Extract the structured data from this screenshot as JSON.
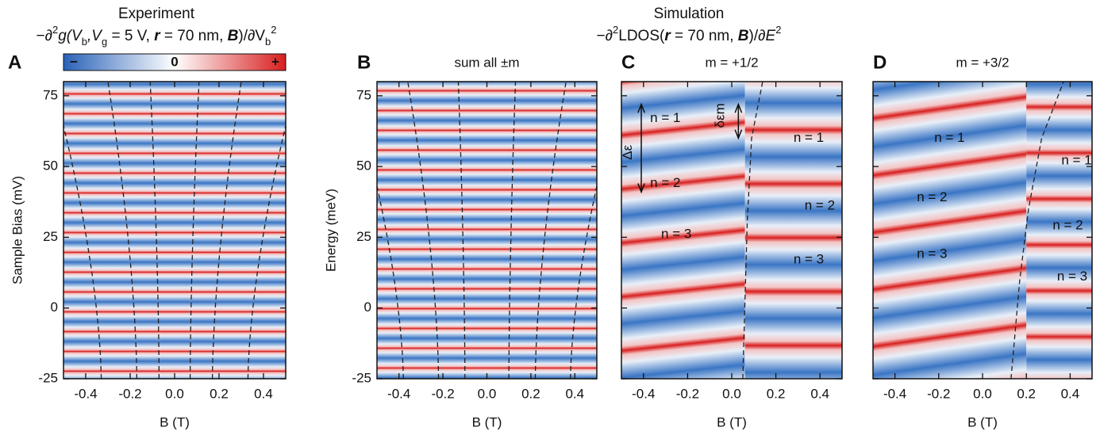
{
  "header": {
    "left_title": "Experiment",
    "left_subtitle_parts": [
      "−∂",
      "2",
      "g(V",
      "b",
      ",V",
      "g",
      " = 5 V, ",
      "r",
      " = 70 nm, ",
      "B",
      ")/∂V",
      "b",
      "2"
    ],
    "right_title": "Simulation",
    "right_subtitle_parts": [
      "−∂",
      "2",
      "LDOS(",
      "r",
      " = 70 nm, ",
      "B",
      ")/∂",
      "E",
      "2"
    ]
  },
  "chart_data": [
    {
      "type": "heatmap",
      "panel": "A",
      "xlabel": "B (T)",
      "ylabel": "Sample Bias (mV)",
      "colorbar_labels": [
        "−",
        "0",
        "+"
      ],
      "xlim": [
        -0.5,
        0.5
      ],
      "xticks": [
        -0.4,
        -0.2,
        {
          "value": 0,
          "label": "0.0"
        },
        0.2,
        0.4
      ],
      "ylim": [
        -25,
        80
      ],
      "yticks": [
        -25,
        0,
        25,
        50,
        75
      ]
    },
    {
      "type": "heatmap",
      "panel": "B",
      "title": "sum all ±m",
      "xlabel": "B (T)",
      "ylabel": "Energy (meV)",
      "xlim": [
        -0.5,
        0.5
      ],
      "xticks": [
        -0.4,
        -0.2,
        {
          "value": 0,
          "label": "0.0"
        },
        0.2,
        0.4
      ],
      "ylim": [
        -25,
        80
      ],
      "yticks": [
        -25,
        0,
        25,
        50,
        75
      ]
    },
    {
      "type": "heatmap",
      "panel": "C",
      "title": "m = +1/2",
      "xlabel": "B (T)",
      "annotations": [
        "n = 1",
        "n = 2",
        "n = 3",
        "n = 1",
        "n = 2",
        "n = 3",
        "Δε",
        "δεm"
      ],
      "xlim": [
        -0.5,
        0.5
      ],
      "xticks": [
        -0.4,
        -0.2,
        {
          "value": 0,
          "label": "0.0"
        },
        0.2,
        0.4
      ],
      "ylim": [
        -25,
        80
      ],
      "yticks": [
        -25,
        0,
        25,
        50,
        75
      ]
    },
    {
      "type": "heatmap",
      "panel": "D",
      "title": "m = +3/2",
      "xlabel": "B (T)",
      "annotations": [
        "n = 1",
        "n = 2",
        "n = 3",
        "n = 1",
        "n = 2",
        "n = 3"
      ],
      "xlim": [
        -0.5,
        0.5
      ],
      "xticks": [
        -0.4,
        -0.2,
        {
          "value": 0,
          "label": "0.0"
        },
        0.2,
        0.4
      ],
      "ylim": [
        -25,
        80
      ],
      "yticks": [
        -25,
        0,
        25,
        50,
        75
      ]
    }
  ]
}
